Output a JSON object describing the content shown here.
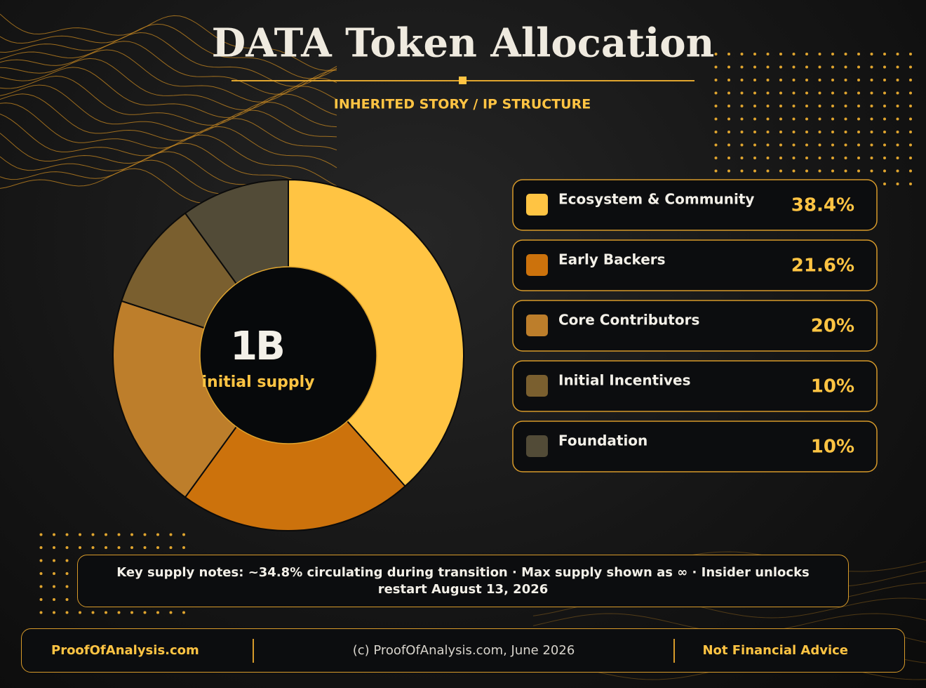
{
  "chart_data": {
    "type": "pie",
    "title": "DATA Token Allocation",
    "subtitle": "INHERITED STORY / IP STRUCTURE",
    "center_value": "1B",
    "center_label": "initial supply",
    "categories": [
      "Ecosystem & Community",
      "Early Backers",
      "Core Contributors",
      "Initial Incentives",
      "Foundation"
    ],
    "values": [
      38.4,
      21.6,
      20,
      10,
      10
    ],
    "value_labels": [
      "38.4%",
      "21.6%",
      "20%",
      "10%",
      "10%"
    ],
    "colors": [
      "#ffc443",
      "#cc720c",
      "#bd7e2b",
      "#7a5f2f",
      "#524b37"
    ]
  },
  "notes": "Key supply notes: ~34.8% circulating during transition · Max supply shown as ∞ · Insider unlocks restart August 13, 2026",
  "footer": {
    "left": "ProofOfAnalysis.com",
    "center": "(c) ProofOfAnalysis.com, June 2026",
    "right": "Not Financial Advice"
  }
}
